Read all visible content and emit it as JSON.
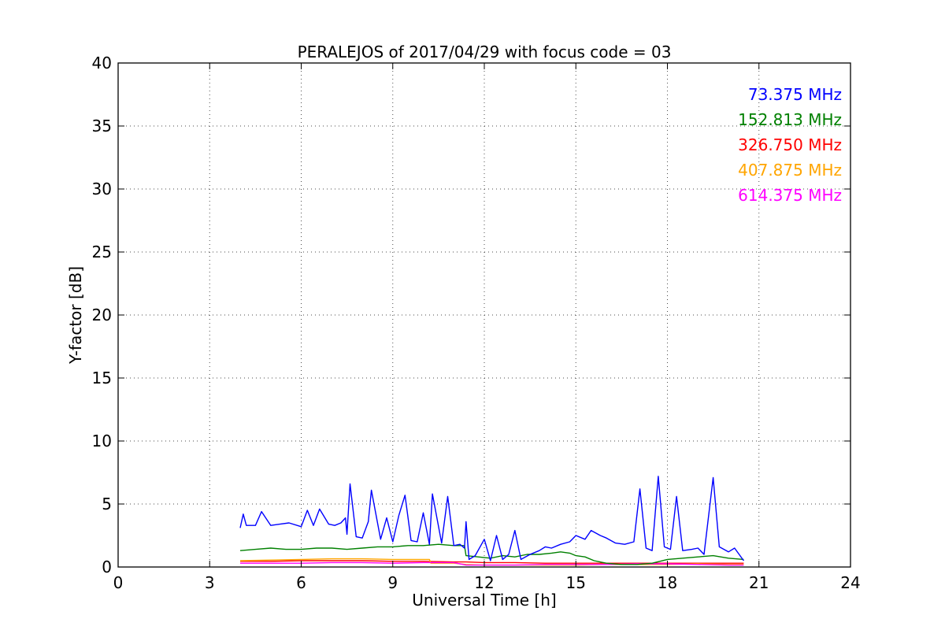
{
  "chart_data": {
    "type": "line",
    "title": "PERALEJOS of 2017/04/29 with focus code = 03",
    "xlabel": "Universal Time [h]",
    "ylabel": "Y-factor [dB]",
    "xlim": [
      0,
      24
    ],
    "ylim": [
      0,
      40
    ],
    "xticks": [
      0,
      3,
      6,
      9,
      12,
      15,
      18,
      21,
      24
    ],
    "yticks": [
      0,
      5,
      10,
      15,
      20,
      25,
      30,
      35,
      40
    ],
    "grid": true,
    "legend_position": "top-right",
    "series": [
      {
        "name": "73.375 MHz",
        "color": "#0000ff",
        "x": [
          4.0,
          4.1,
          4.2,
          4.5,
          4.7,
          5.0,
          5.3,
          5.6,
          6.0,
          6.2,
          6.4,
          6.6,
          6.9,
          7.1,
          7.3,
          7.45,
          7.5,
          7.6,
          7.8,
          8.0,
          8.2,
          8.3,
          8.6,
          8.8,
          9.0,
          9.2,
          9.4,
          9.6,
          9.8,
          10.0,
          10.2,
          10.3,
          10.6,
          10.8,
          11.0,
          11.2,
          11.35,
          11.4,
          11.5,
          11.7,
          12.0,
          12.2,
          12.4,
          12.6,
          12.8,
          13.0,
          13.2,
          13.5,
          13.8,
          14.0,
          14.2,
          14.5,
          14.8,
          15.0,
          15.3,
          15.5,
          15.8,
          16.0,
          16.3,
          16.6,
          16.9,
          17.1,
          17.3,
          17.5,
          17.7,
          17.9,
          18.1,
          18.3,
          18.5,
          18.8,
          19.0,
          19.2,
          19.5,
          19.7,
          20.0,
          20.2,
          20.5
        ],
        "y": [
          3.1,
          4.2,
          3.3,
          3.3,
          4.4,
          3.3,
          3.4,
          3.5,
          3.2,
          4.5,
          3.3,
          4.6,
          3.4,
          3.3,
          3.5,
          3.9,
          2.6,
          6.6,
          2.4,
          2.3,
          3.6,
          6.1,
          2.2,
          3.9,
          2.0,
          4.1,
          5.7,
          2.1,
          2.0,
          4.3,
          1.8,
          5.8,
          1.9,
          5.6,
          1.7,
          1.8,
          1.5,
          3.6,
          0.6,
          0.9,
          2.2,
          0.5,
          2.5,
          0.6,
          1.0,
          2.9,
          0.6,
          1.0,
          1.3,
          1.6,
          1.5,
          1.8,
          2.0,
          2.5,
          2.2,
          2.9,
          2.5,
          2.3,
          1.9,
          1.8,
          2.0,
          6.2,
          1.5,
          1.3,
          7.2,
          1.6,
          1.4,
          5.6,
          1.3,
          1.4,
          1.5,
          1.0,
          7.1,
          1.6,
          1.2,
          1.5,
          0.5
        ]
      },
      {
        "name": "152.813 MHz",
        "color": "#008000",
        "x": [
          4.0,
          4.5,
          5.0,
          5.5,
          6.0,
          6.5,
          7.0,
          7.5,
          8.0,
          8.5,
          9.0,
          9.5,
          10.0,
          10.5,
          11.0,
          11.35,
          11.4,
          11.8,
          12.2,
          12.6,
          13.0,
          13.4,
          13.8,
          14.2,
          14.5,
          14.8,
          15.0,
          15.3,
          15.6,
          16.0,
          16.5,
          17.0,
          17.5,
          18.0,
          18.5,
          19.0,
          19.5,
          20.0,
          20.5
        ],
        "y": [
          1.3,
          1.4,
          1.5,
          1.4,
          1.4,
          1.5,
          1.5,
          1.4,
          1.5,
          1.6,
          1.6,
          1.7,
          1.7,
          1.8,
          1.7,
          1.7,
          0.9,
          0.8,
          0.7,
          0.9,
          0.8,
          1.0,
          1.0,
          1.1,
          1.2,
          1.1,
          0.9,
          0.8,
          0.5,
          0.3,
          0.2,
          0.2,
          0.3,
          0.6,
          0.7,
          0.8,
          0.9,
          0.7,
          0.6
        ]
      },
      {
        "name": "326.750 MHz",
        "color": "#ff0000",
        "x": [
          4.0,
          5.0,
          6.0,
          7.0,
          8.0,
          9.0,
          10.0,
          11.0,
          11.4,
          12.0,
          13.0,
          14.0,
          15.0,
          16.0,
          17.0,
          18.0,
          19.0,
          20.0,
          20.5
        ],
        "y": [
          0.45,
          0.45,
          0.5,
          0.5,
          0.5,
          0.45,
          0.45,
          0.4,
          0.4,
          0.35,
          0.35,
          0.3,
          0.3,
          0.3,
          0.3,
          0.3,
          0.3,
          0.3,
          0.3
        ]
      },
      {
        "name": "407.875 MHz",
        "color": "#ffa500",
        "x": [
          4.0,
          5.0,
          6.0,
          7.0,
          8.0,
          9.0,
          10.0,
          10.2,
          10.25,
          11.0,
          11.4,
          12.0,
          13.0,
          14.0,
          15.0,
          16.0,
          17.0,
          18.0,
          19.0,
          20.0,
          20.5
        ],
        "y": [
          0.5,
          0.55,
          0.6,
          0.65,
          0.65,
          0.6,
          0.6,
          0.6,
          0.3,
          0.3,
          0.2,
          0.15,
          0.15,
          0.15,
          0.15,
          0.2,
          0.2,
          0.2,
          0.25,
          0.2,
          0.2
        ]
      },
      {
        "name": "614.375 MHz",
        "color": "#ff00ff",
        "x": [
          4.0,
          5.0,
          6.0,
          7.0,
          8.0,
          9.0,
          10.0,
          11.0,
          11.4,
          12.0,
          13.0,
          14.0,
          15.0,
          16.0,
          17.0,
          18.0,
          19.0,
          20.0,
          20.5
        ],
        "y": [
          0.3,
          0.3,
          0.3,
          0.35,
          0.35,
          0.3,
          0.35,
          0.35,
          0.15,
          0.15,
          0.15,
          0.2,
          0.2,
          0.2,
          0.25,
          0.25,
          0.2,
          0.15,
          0.15
        ]
      }
    ]
  }
}
